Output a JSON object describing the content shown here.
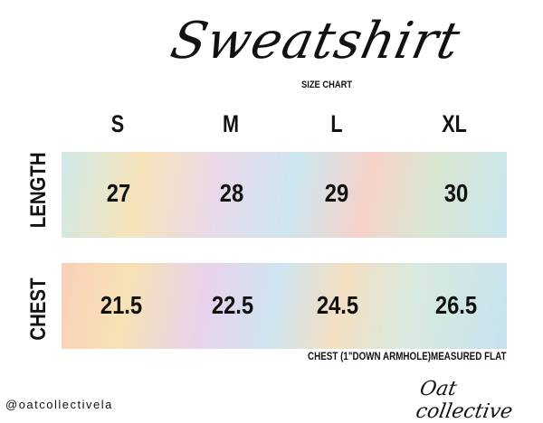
{
  "header": {
    "title": "Sweatshirt",
    "subtitle": "SIZE CHART"
  },
  "columns": [
    "S",
    "M",
    "L",
    "XL"
  ],
  "rows": [
    {
      "label": "LENGTH",
      "values": [
        "27",
        "28",
        "29",
        "30"
      ]
    },
    {
      "label": "CHEST",
      "values": [
        "21.5",
        "22.5",
        "24.5",
        "26.5"
      ]
    }
  ],
  "note": "CHEST (1\"DOWN ARMHOLE)MEASURED FLAT",
  "footer": {
    "handle": "@oatcollectivela",
    "brand": "Oat collective"
  }
}
